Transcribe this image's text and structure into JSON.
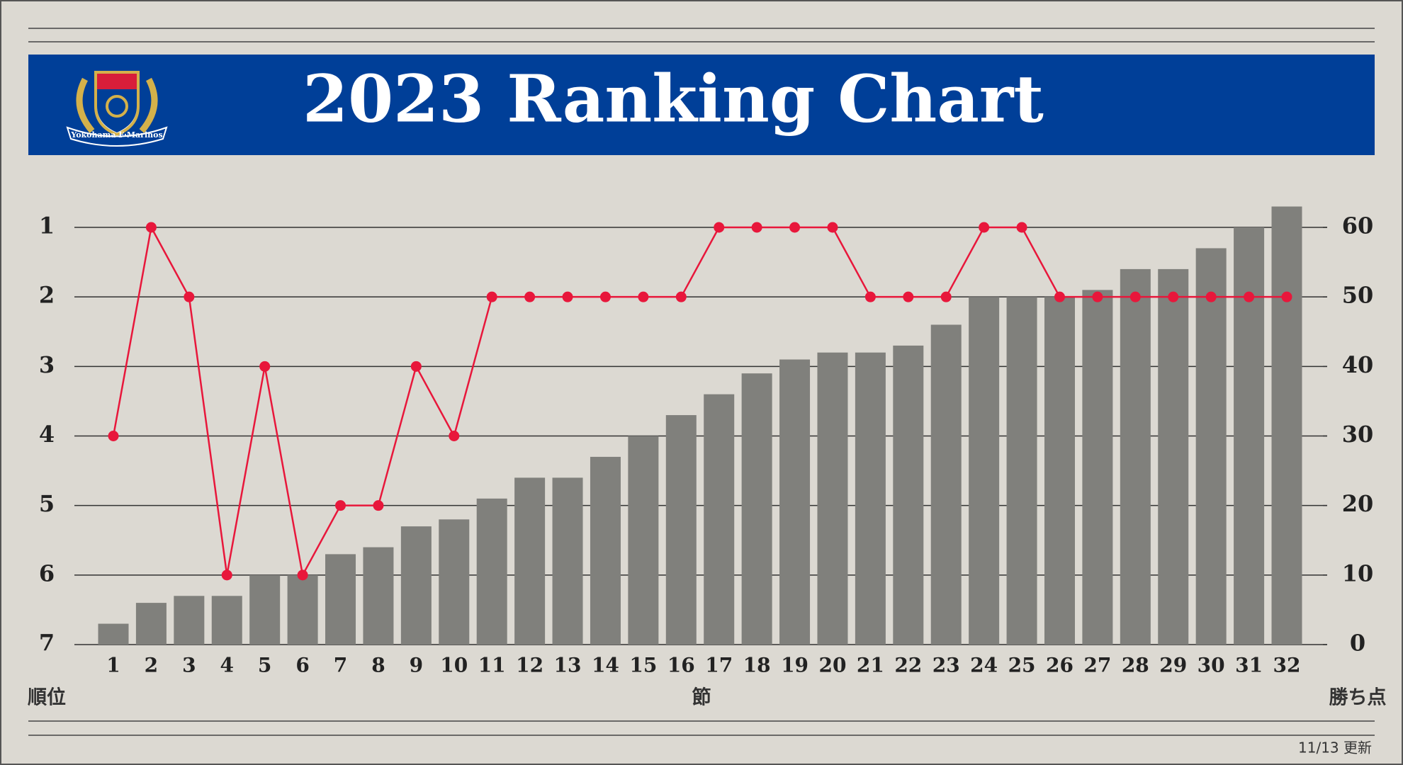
{
  "chart_data": {
    "type": "combo",
    "title": "2023 Ranking Chart",
    "logo_text": "Yokohama F·Marinos",
    "x_label": "節",
    "y_label": "順位",
    "y2_label": "勝ち点",
    "note": "11/13 更新",
    "categories": [
      1,
      2,
      3,
      4,
      5,
      6,
      7,
      8,
      9,
      10,
      11,
      12,
      13,
      14,
      15,
      16,
      17,
      18,
      19,
      20,
      21,
      22,
      23,
      24,
      25,
      26,
      27,
      28,
      29,
      30,
      31,
      32
    ],
    "series": [
      {
        "type": "bar",
        "axis": "y2",
        "color": "#80807c",
        "values": [
          3,
          6,
          7,
          7,
          10,
          10,
          13,
          14,
          17,
          18,
          21,
          24,
          24,
          27,
          30,
          33,
          36,
          39,
          41,
          42,
          42,
          43,
          46,
          50,
          50,
          50,
          51,
          54,
          54,
          57,
          60,
          63
        ]
      },
      {
        "type": "line",
        "axis": "y",
        "color": "#e8173b",
        "values": [
          4,
          1,
          2,
          6,
          3,
          6,
          5,
          5,
          3,
          4,
          2,
          2,
          2,
          2,
          2,
          2,
          1,
          1,
          1,
          1,
          2,
          2,
          2,
          1,
          1,
          2,
          2,
          2,
          2,
          2,
          2,
          2
        ]
      }
    ],
    "ylim": [
      7,
      1
    ],
    "yticks": [
      1,
      2,
      3,
      4,
      5,
      6,
      7
    ],
    "y2lim": [
      0,
      60
    ],
    "y2ticks": [
      0,
      10,
      20,
      30,
      40,
      50,
      60
    ],
    "grid": true
  }
}
